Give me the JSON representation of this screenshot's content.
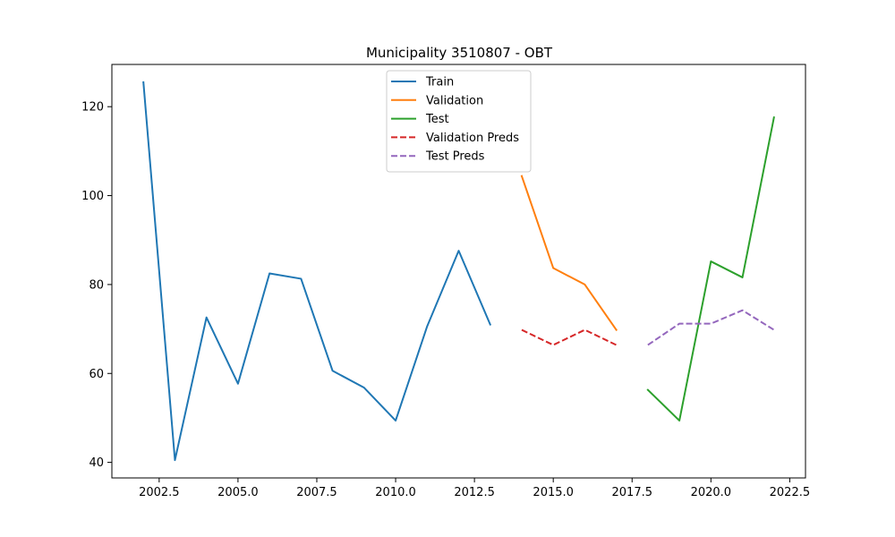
{
  "chart_data": {
    "type": "line",
    "title": "Municipality 3510807 - OBT",
    "xlabel": "",
    "ylabel": "",
    "xlim": [
      2001.0,
      2023.0
    ],
    "ylim": [
      36.5,
      129.5
    ],
    "xticks": [
      2002.5,
      2005.0,
      2007.5,
      2010.0,
      2012.5,
      2015.0,
      2017.5,
      2020.0,
      2022.5
    ],
    "xtick_labels": [
      "2002.5",
      "2005.0",
      "2007.5",
      "2010.0",
      "2012.5",
      "2015.0",
      "2017.5",
      "2020.0",
      "2022.5"
    ],
    "yticks": [
      40,
      60,
      80,
      100,
      120
    ],
    "ytick_labels": [
      "40",
      "60",
      "80",
      "100",
      "120"
    ],
    "grid": false,
    "legend_position": "top-center",
    "series": [
      {
        "name": "Train",
        "color": "#1f77b4",
        "style": "solid",
        "x": [
          2002,
          2003,
          2004,
          2005,
          2006,
          2007,
          2008,
          2009,
          2010,
          2011,
          2012,
          2013
        ],
        "y": [
          125.5,
          40.5,
          72.6,
          57.7,
          82.5,
          81.3,
          60.6,
          56.8,
          49.4,
          70.6,
          87.6,
          71.0
        ]
      },
      {
        "name": "Validation",
        "color": "#ff7f0e",
        "style": "solid",
        "x": [
          2014,
          2015,
          2016,
          2017
        ],
        "y": [
          104.4,
          83.7,
          80.0,
          69.8
        ]
      },
      {
        "name": "Test",
        "color": "#2ca02c",
        "style": "solid",
        "x": [
          2018,
          2019,
          2020,
          2021,
          2022
        ],
        "y": [
          56.3,
          49.4,
          85.2,
          81.6,
          117.6
        ]
      },
      {
        "name": "Validation Preds",
        "color": "#d62728",
        "style": "dashed",
        "x": [
          2014,
          2015,
          2016,
          2017
        ],
        "y": [
          69.8,
          66.4,
          69.8,
          66.4
        ]
      },
      {
        "name": "Test Preds",
        "color": "#9467bd",
        "style": "dashed",
        "x": [
          2018,
          2019,
          2020,
          2021,
          2022
        ],
        "y": [
          66.4,
          71.2,
          71.2,
          74.2,
          69.8
        ]
      }
    ]
  }
}
